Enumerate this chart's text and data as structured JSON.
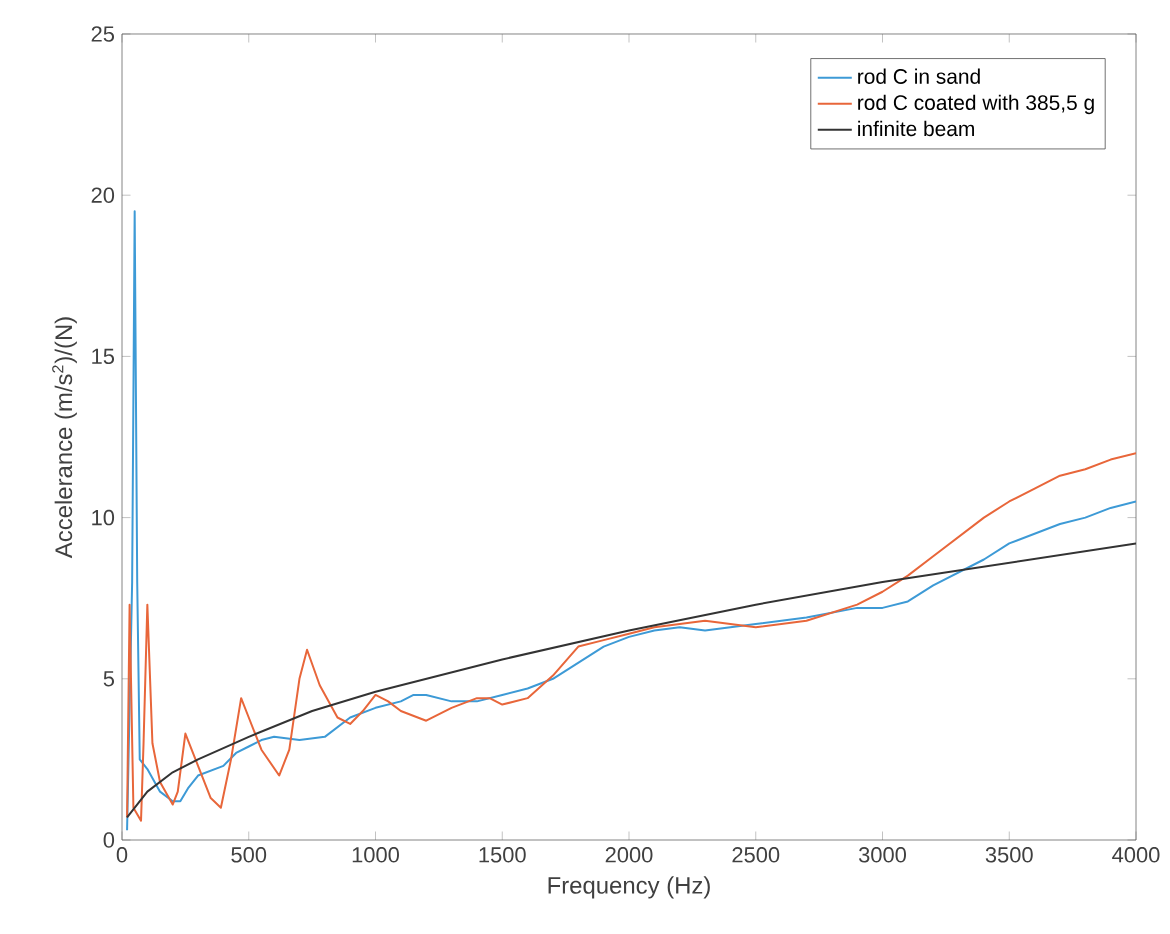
{
  "chart_data": {
    "type": "line",
    "xlabel": "Frequency (Hz)",
    "ylabel": "Accelerance (m/s$^{2}$)/(N)",
    "xlim": [
      0,
      4000
    ],
    "ylim": [
      0,
      25
    ],
    "xticks": [
      0,
      500,
      1000,
      1500,
      2000,
      2500,
      3000,
      3500,
      4000
    ],
    "yticks": [
      0,
      5,
      10,
      15,
      20,
      25
    ],
    "legend": "top right",
    "grid": false,
    "line_style": "solid",
    "marker": "none",
    "series": [
      {
        "name": "rod C in sand",
        "color": "#3d9ad6",
        "x": [
          20,
          40,
          50,
          60,
          70,
          100,
          150,
          200,
          230,
          260,
          300,
          400,
          450,
          500,
          550,
          600,
          700,
          800,
          900,
          1000,
          1100,
          1150,
          1200,
          1300,
          1400,
          1500,
          1600,
          1700,
          1800,
          1900,
          2000,
          2100,
          2200,
          2300,
          2500,
          2700,
          2900,
          3000,
          3100,
          3200,
          3300,
          3400,
          3500,
          3600,
          3700,
          3800,
          3900,
          4000
        ],
        "values": [
          0.3,
          8,
          19.5,
          8,
          2.5,
          2.2,
          1.5,
          1.2,
          1.2,
          1.6,
          2.0,
          2.3,
          2.7,
          2.9,
          3.1,
          3.2,
          3.1,
          3.2,
          3.8,
          4.1,
          4.3,
          4.5,
          4.5,
          4.3,
          4.3,
          4.5,
          4.7,
          5.0,
          5.5,
          6.0,
          6.3,
          6.5,
          6.6,
          6.5,
          6.7,
          6.9,
          7.2,
          7.2,
          7.4,
          7.9,
          8.3,
          8.7,
          9.2,
          9.5,
          9.8,
          10.0,
          10.3,
          10.5
        ]
      },
      {
        "name": "rod C coated with 385,5 g",
        "color": "#e8663a",
        "x": [
          20,
          30,
          45,
          60,
          75,
          85,
          100,
          120,
          150,
          200,
          220,
          250,
          300,
          350,
          390,
          430,
          470,
          500,
          550,
          620,
          660,
          700,
          730,
          780,
          850,
          900,
          950,
          1000,
          1050,
          1100,
          1200,
          1300,
          1400,
          1450,
          1500,
          1600,
          1700,
          1800,
          1900,
          2000,
          2100,
          2300,
          2400,
          2500,
          2700,
          2900,
          3000,
          3100,
          3200,
          3300,
          3400,
          3500,
          3600,
          3700,
          3800,
          3900,
          4000
        ],
        "values": [
          0.7,
          7.3,
          1.0,
          0.8,
          0.6,
          3,
          7.3,
          3,
          1.8,
          1.1,
          1.5,
          3.3,
          2.3,
          1.3,
          1.0,
          2.5,
          4.4,
          3.8,
          2.8,
          2.0,
          2.8,
          5.0,
          5.9,
          4.8,
          3.8,
          3.6,
          4.0,
          4.5,
          4.3,
          4.0,
          3.7,
          4.1,
          4.4,
          4.4,
          4.2,
          4.4,
          5.1,
          6.0,
          6.2,
          6.4,
          6.6,
          6.8,
          6.7,
          6.6,
          6.8,
          7.3,
          7.7,
          8.2,
          8.8,
          9.4,
          10.0,
          10.5,
          10.9,
          11.3,
          11.5,
          11.8,
          12.0
        ]
      },
      {
        "name": "infinite beam",
        "color": "#333333",
        "x": [
          20,
          100,
          200,
          300,
          500,
          750,
          1000,
          1500,
          2000,
          2500,
          3000,
          3500,
          4000
        ],
        "values": [
          0.7,
          1.5,
          2.1,
          2.5,
          3.2,
          4.0,
          4.6,
          5.6,
          6.5,
          7.3,
          8.0,
          8.6,
          9.2
        ]
      }
    ]
  }
}
